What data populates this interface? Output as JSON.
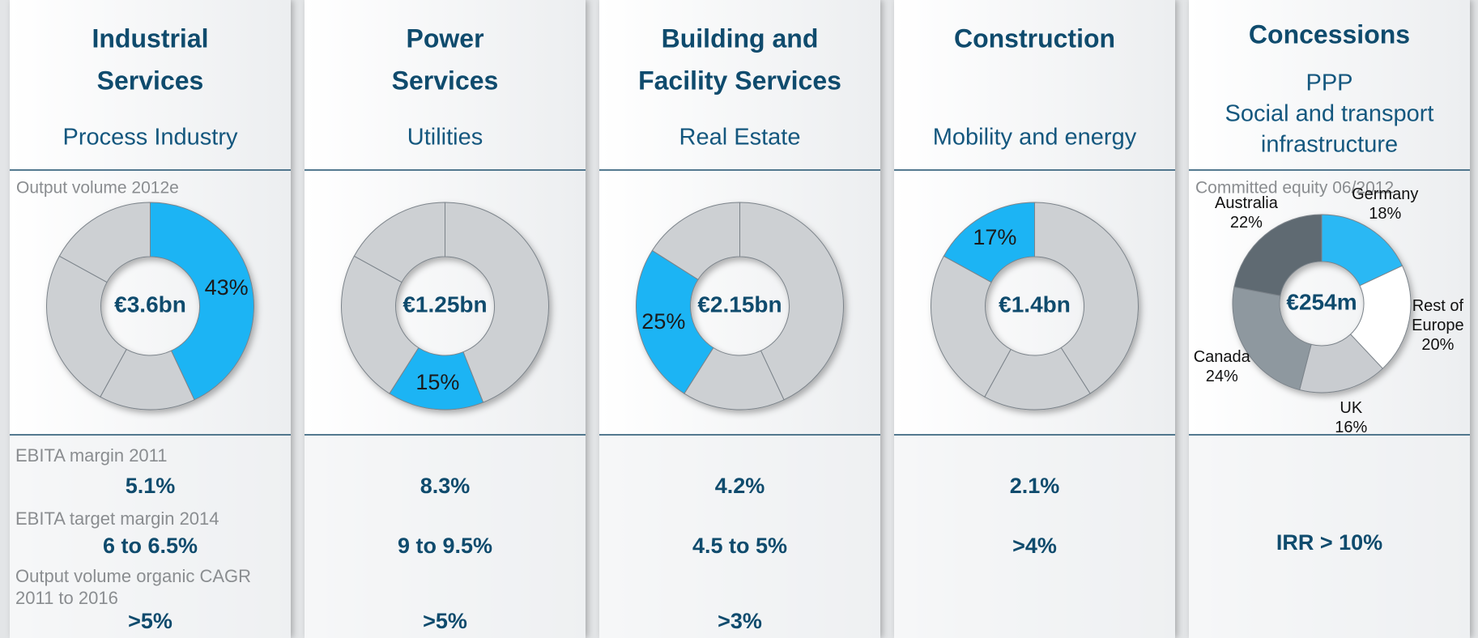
{
  "metric_labels": [
    "EBITA margin 2011",
    "EBITA target  margin 2014",
    "Output volume organic CAGR 2011 to 2016"
  ],
  "columns": [
    {
      "title": [
        "Industrial",
        "Services"
      ],
      "subtitle": [
        "Process Industry"
      ],
      "metrics": [
        "5.1%",
        "6 to 6.5%",
        ">5%"
      ]
    },
    {
      "title": [
        "Power",
        "Services"
      ],
      "subtitle": [
        "Utilities"
      ],
      "metrics": [
        "8.3%",
        "9 to 9.5%",
        ">5%"
      ]
    },
    {
      "title": [
        "Building and",
        "Facility Services"
      ],
      "subtitle": [
        "Real Estate"
      ],
      "metrics": [
        "4.2%",
        "4.5 to 5%",
        ">3%"
      ]
    },
    {
      "title": [
        "Construction"
      ],
      "subtitle": [
        "Mobility and energy"
      ],
      "metrics": [
        "2.1%",
        ">4%"
      ]
    },
    {
      "title": [
        "Concessions"
      ],
      "subtitle": [
        "PPP",
        "Social and transport",
        "infrastructure"
      ],
      "metrics": [
        "IRR > 10%"
      ]
    }
  ],
  "chart_data": [
    {
      "type": "donut",
      "label": "Output volume 2012e",
      "center_label": "€3.6bn",
      "values": [
        43,
        15,
        25,
        17
      ],
      "value_labels": [
        "43%",
        null,
        null,
        null
      ],
      "colors": [
        "#1db4f4",
        "#cdd0d3",
        "#cdd0d3",
        "#cdd0d3"
      ]
    },
    {
      "type": "donut",
      "center_label": "€1.25bn",
      "values": [
        44,
        15,
        24,
        17
      ],
      "value_labels": [
        null,
        "15%",
        null,
        null
      ],
      "colors": [
        "#cdd0d3",
        "#1db4f4",
        "#cdd0d3",
        "#cdd0d3"
      ]
    },
    {
      "type": "donut",
      "center_label": "€2.15bn",
      "values": [
        43,
        16,
        25,
        16
      ],
      "value_labels": [
        null,
        null,
        "25%",
        null
      ],
      "colors": [
        "#cdd0d3",
        "#cdd0d3",
        "#1db4f4",
        "#cdd0d3"
      ]
    },
    {
      "type": "donut",
      "center_label": "€1.4bn",
      "values": [
        41,
        17,
        25,
        17
      ],
      "value_labels": [
        null,
        null,
        null,
        "17%"
      ],
      "colors": [
        "#cdd0d3",
        "#cdd0d3",
        "#cdd0d3",
        "#1db4f4"
      ]
    },
    {
      "type": "donut",
      "label": "Committed equity 06/2012",
      "center_label": "€254m",
      "categories": [
        "Germany",
        "Rest of Europe",
        "UK",
        "Canada",
        "Australia"
      ],
      "values": [
        18,
        20,
        16,
        24,
        22
      ],
      "value_labels": [
        "18%",
        "20%",
        "16%",
        "24%",
        "22%"
      ],
      "colors": [
        "#29b8f4",
        "#ffffff",
        "#c9ccd0",
        "#8e989f",
        "#5f6a72"
      ]
    }
  ]
}
